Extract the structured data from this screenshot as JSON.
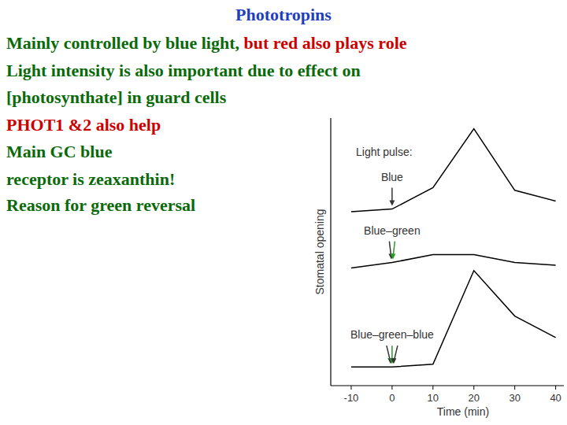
{
  "slide": {
    "title": {
      "text": "Phototropins",
      "color": "#1f3fbf"
    },
    "lines": [
      {
        "segments": [
          {
            "text": "Mainly controlled by blue light, ",
            "color": "#0a6a0a"
          },
          {
            "text": "but red also plays role",
            "color": "#cc0000"
          }
        ]
      },
      {
        "segments": [
          {
            "text": "Light intensity is also important due to effect on",
            "color": "#0a6a0a"
          }
        ]
      },
      {
        "segments": [
          {
            "text": "[photosynthate] in guard cells",
            "color": "#0a6a0a"
          }
        ]
      },
      {
        "segments": [
          {
            "text": "PHOT1 &2 also help",
            "color": "#cc0000"
          }
        ]
      },
      {
        "segments": [
          {
            "text": "Main GC blue",
            "color": "#0a6a0a"
          }
        ]
      },
      {
        "segments": [
          {
            "text": "receptor is zeaxanthin!",
            "color": "#0a6a0a"
          }
        ]
      },
      {
        "segments": [
          {
            "text": "Reason for green reversal",
            "color": "#0a6a0a"
          }
        ]
      }
    ]
  },
  "chart_data": {
    "type": "line",
    "annotation": "Light pulse:",
    "x_label": "Time (min)",
    "y_label": "Stomatal opening",
    "x": [
      -10,
      0,
      10,
      20,
      30,
      40
    ],
    "xlim": [
      -15,
      42
    ],
    "xticks": [
      -10,
      0,
      10,
      20,
      30,
      40
    ],
    "ylim": [
      0,
      100
    ],
    "tick_labels": "x",
    "marker": "none",
    "series": [
      {
        "name": "Blue",
        "color": "#000000",
        "values": [
          65,
          66,
          74,
          96,
          73,
          69
        ]
      },
      {
        "name": "Blue–green",
        "color": "#000000",
        "values": [
          44,
          46,
          49,
          49,
          46,
          45
        ]
      },
      {
        "name": "Blue–green–blue",
        "color": "#000000",
        "values": [
          7,
          7,
          8,
          43,
          26,
          18
        ]
      }
    ]
  }
}
